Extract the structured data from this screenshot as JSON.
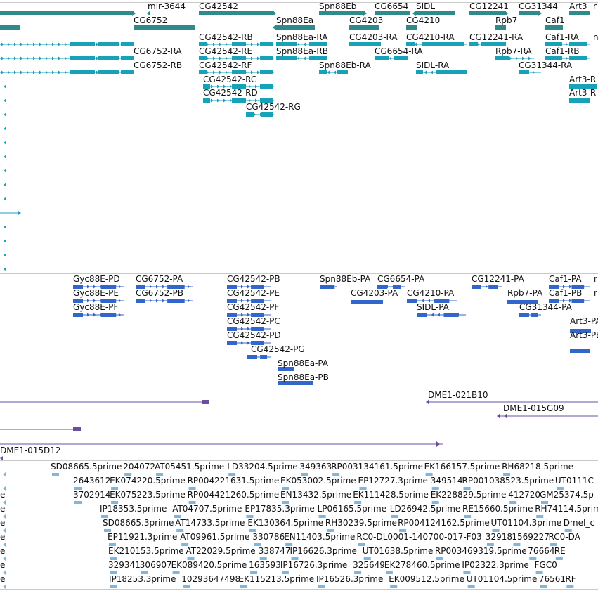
{
  "colors": {
    "gene": "#2f8b8b",
    "transcript": "#17a2b8",
    "protein": "#3366cc",
    "bac": "#6a4fa0",
    "est": "#7fb6dd",
    "divider": "#c9c9c9"
  },
  "tracks": {
    "genes": {
      "name": "genes",
      "features": [
        {
          "id": "mir3644",
          "label": "mir-3644"
        },
        {
          "id": "CG42542",
          "label": "CG42542"
        },
        {
          "id": "Spn88Eb",
          "label": "Spn88Eb"
        },
        {
          "id": "CG6654",
          "label": "CG6654"
        },
        {
          "id": "SIDL",
          "label": "SIDL"
        },
        {
          "id": "CG12241",
          "label": "CG12241"
        },
        {
          "id": "CG31344",
          "label": "CG31344"
        },
        {
          "id": "Art3",
          "label": "Art3"
        },
        {
          "id": "r_cut",
          "label": "r"
        },
        {
          "id": "CG6752",
          "label": "CG6752"
        },
        {
          "id": "Spn88Ea",
          "label": "Spn88Ea"
        },
        {
          "id": "CG4203",
          "label": "CG4203"
        },
        {
          "id": "CG4210",
          "label": "CG4210"
        },
        {
          "id": "Rpb7",
          "label": "Rpb7"
        },
        {
          "id": "Caf1",
          "label": "Caf1"
        }
      ]
    },
    "transcripts": {
      "name": "transcripts",
      "features": [
        {
          "label": "CG42542-RB"
        },
        {
          "label": "Spn88Ea-RA"
        },
        {
          "label": "CG4203-RA"
        },
        {
          "label": "CG4210-RA"
        },
        {
          "label": "CG12241-RA"
        },
        {
          "label": "Caf1-RA"
        },
        {
          "label": "n"
        },
        {
          "label": "CG6752-RA"
        },
        {
          "label": "CG42542-RE"
        },
        {
          "label": "Spn88Ea-RB"
        },
        {
          "label": "CG6654-RA"
        },
        {
          "label": "Rpb7-RA"
        },
        {
          "label": "Caf1-RB"
        },
        {
          "label": "CG6752-RB"
        },
        {
          "label": "CG42542-RF"
        },
        {
          "label": "Spn88Eb-RA"
        },
        {
          "label": "SIDL-RA"
        },
        {
          "label": "CG31344-RA"
        },
        {
          "label": "CG42542-RC"
        },
        {
          "label": "Art3-R"
        },
        {
          "label": "CG42542-RD"
        },
        {
          "label": "Art3-R"
        },
        {
          "label": "CG42542-RG"
        }
      ]
    },
    "proteins": {
      "name": "proteins",
      "features": [
        {
          "label": "Gyc88E-PD"
        },
        {
          "label": "CG6752-PA"
        },
        {
          "label": "CG42542-PB"
        },
        {
          "label": "Spn88Eb-PA"
        },
        {
          "label": "CG6654-PA"
        },
        {
          "label": "CG12241-PA"
        },
        {
          "label": "Caf1-PA"
        },
        {
          "label": "r"
        },
        {
          "label": "Gyc88E-PE"
        },
        {
          "label": "CG6752-PB"
        },
        {
          "label": "CG42542-PE"
        },
        {
          "label": "CG4203-PA"
        },
        {
          "label": "CG4210-PA"
        },
        {
          "label": "Rpb7-PA"
        },
        {
          "label": "Caf1-PB"
        },
        {
          "label": "r"
        },
        {
          "label": "Gyc88E-PF"
        },
        {
          "label": "CG42542-PF"
        },
        {
          "label": "SIDL-PA"
        },
        {
          "label": "CG31344-PA"
        },
        {
          "label": "CG42542-PC"
        },
        {
          "label": "Art3-PA"
        },
        {
          "label": "CG42542-PD"
        },
        {
          "label": "Art3-PB"
        },
        {
          "label": "CG42542-PG"
        },
        {
          "label": "Spn88Ea-PA"
        },
        {
          "label": "Spn88Ea-PB"
        }
      ]
    },
    "bacs": {
      "name": "bac clones",
      "features": [
        {
          "label": "DME1-021B10"
        },
        {
          "label": "DME1-015G09"
        },
        {
          "label": "DME1-015D12"
        }
      ]
    },
    "ests": {
      "name": "ESTs",
      "rows": [
        [
          "SD08665.5prime",
          "204072",
          "AT05451.5prime",
          "LD33204.5prime",
          "349363",
          "RP003134161.5prime",
          "EK166157.5prime",
          "RH68218.5prime"
        ],
        [
          "2643612",
          "EK074220.5prime",
          "RP004221631.5prime",
          "EK053002.5prime",
          "EP12727.3prime",
          "349514",
          "RP001038523.5prime",
          "UT0111C"
        ],
        [
          "3702914",
          "EK075223.5prime",
          "RP004421260.5prime",
          "EN13432.5prime",
          "EK111428.5prime",
          "EK228829.5prime",
          "412720",
          "GM25374.5p"
        ],
        [
          "IP18353.5prime",
          "AT04707.5prime",
          "EP17835.3prime",
          "LP06165.5prime",
          "LD26942.5prime",
          "RE15660.5prime",
          "RH74114.5prim"
        ],
        [
          "SD08665.3prime",
          "AT14733.5prime",
          "EK130364.5prime",
          "RH30239.5prime",
          "RP004124162.5prime",
          "UT01104.3prime",
          "DmeI_c"
        ],
        [
          "EP11921.3prime",
          "AT09961.5prime",
          "330786",
          "EN11403.5prime",
          "RC0-DL0001-140700-017-F03",
          "32918",
          "1569227",
          "RC0-DA"
        ],
        [
          "EK210153.5prime",
          "AT22029.5prime",
          "338747",
          "IP16626.3prime",
          "UT01638.5prime",
          "RP003469319.5prime",
          "76664",
          "RE"
        ],
        [
          "329341",
          "306907",
          "EK089420.5prime",
          "163593",
          "IP16726.3prime",
          "325649",
          "EK278460.5prime",
          "IP02322.3prime",
          "FGC0"
        ],
        [
          "IP18253.3prime",
          "10293647498",
          "EK115213.5prime",
          "IP16526.3prime",
          "EK009512.5prime",
          "UT01104.5prime",
          "76561",
          "RF"
        ]
      ],
      "left_edge_labels": [
        "e",
        "e",
        "e",
        "e",
        "e",
        "e",
        "e"
      ]
    }
  }
}
